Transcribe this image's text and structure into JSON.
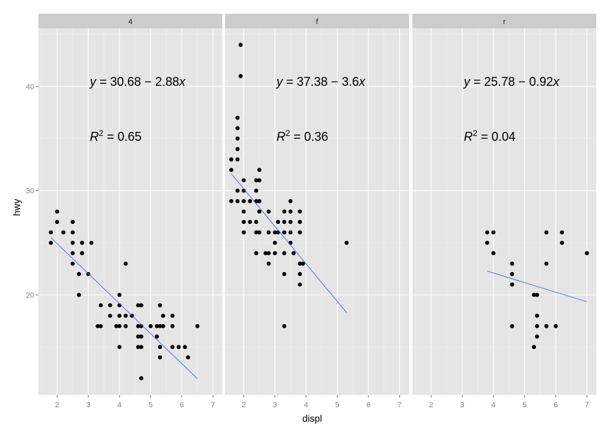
{
  "chart_data": {
    "type": "scatter",
    "facet_variable": "drv",
    "xlabel": "displ",
    "ylabel": "hwy",
    "xlim": [
      1.4,
      7.3
    ],
    "ylim": [
      10.4,
      45.6
    ],
    "x_ticks": [
      2,
      3,
      4,
      5,
      6,
      7
    ],
    "y_ticks": [
      20,
      30,
      40
    ],
    "grid": true,
    "colors": {
      "panel_bg": "#e5e5e5",
      "strip_bg": "#cccccc",
      "grid_major": "#ffffff",
      "grid_minor": "#f2f2f2",
      "point": "#000000",
      "fit_line": "#3366ff"
    },
    "panels": [
      {
        "label": "4",
        "equation": {
          "y": "y",
          "eq": " = ",
          "rhs": "30.68 − 2.88",
          "x": "x"
        },
        "r2": {
          "R": "R",
          "sup": "2",
          "eq": " = ",
          "value": "0.65"
        },
        "fit": {
          "intercept": 30.68,
          "slope": -2.88,
          "x_range": [
            1.8,
            6.5
          ]
        },
        "points": [
          [
            1.8,
            26
          ],
          [
            1.8,
            25
          ],
          [
            2.0,
            28
          ],
          [
            2.0,
            27
          ],
          [
            2.2,
            26
          ],
          [
            2.5,
            27
          ],
          [
            2.5,
            26
          ],
          [
            2.5,
            25
          ],
          [
            2.5,
            24
          ],
          [
            2.5,
            23
          ],
          [
            2.7,
            22
          ],
          [
            2.7,
            20
          ],
          [
            2.8,
            25
          ],
          [
            2.8,
            24
          ],
          [
            3.0,
            22
          ],
          [
            3.1,
            25
          ],
          [
            3.3,
            17
          ],
          [
            3.4,
            19
          ],
          [
            3.4,
            17
          ],
          [
            3.7,
            19
          ],
          [
            3.7,
            18
          ],
          [
            3.9,
            17
          ],
          [
            4.0,
            20
          ],
          [
            4.0,
            19
          ],
          [
            4.0,
            18
          ],
          [
            4.0,
            17
          ],
          [
            4.0,
            15
          ],
          [
            4.2,
            23
          ],
          [
            4.2,
            18
          ],
          [
            4.2,
            17
          ],
          [
            4.4,
            18
          ],
          [
            4.6,
            19
          ],
          [
            4.6,
            17
          ],
          [
            4.7,
            19
          ],
          [
            4.7,
            17
          ],
          [
            4.7,
            16
          ],
          [
            4.7,
            15
          ],
          [
            4.7,
            12
          ],
          [
            4.6,
            16
          ],
          [
            4.6,
            15
          ],
          [
            5.0,
            17
          ],
          [
            5.2,
            17
          ],
          [
            5.2,
            16
          ],
          [
            5.3,
            19
          ],
          [
            5.3,
            17
          ],
          [
            5.3,
            15
          ],
          [
            5.3,
            14
          ],
          [
            5.4,
            18
          ],
          [
            5.4,
            17
          ],
          [
            5.7,
            18
          ],
          [
            5.7,
            17
          ],
          [
            5.7,
            15
          ],
          [
            5.9,
            15
          ],
          [
            6.1,
            15
          ],
          [
            6.5,
            17
          ],
          [
            6.2,
            14
          ]
        ]
      },
      {
        "label": "f",
        "equation": {
          "y": "y",
          "eq": " = ",
          "rhs": "37.38 − 3.6",
          "x": "x"
        },
        "r2": {
          "R": "R",
          "sup": "2",
          "eq": " = ",
          "value": "0.36"
        },
        "fit": {
          "intercept": 37.38,
          "slope": -3.6,
          "x_range": [
            1.6,
            5.3
          ]
        },
        "points": [
          [
            1.6,
            33
          ],
          [
            1.6,
            32
          ],
          [
            1.6,
            29
          ],
          [
            1.8,
            37
          ],
          [
            1.8,
            36
          ],
          [
            1.8,
            35
          ],
          [
            1.8,
            34
          ],
          [
            1.8,
            33
          ],
          [
            1.8,
            30
          ],
          [
            1.8,
            29
          ],
          [
            1.9,
            44
          ],
          [
            1.9,
            41
          ],
          [
            2.0,
            31
          ],
          [
            2.0,
            30
          ],
          [
            2.0,
            29
          ],
          [
            2.0,
            28
          ],
          [
            2.0,
            27
          ],
          [
            2.0,
            26
          ],
          [
            2.2,
            29
          ],
          [
            2.2,
            27
          ],
          [
            2.4,
            31
          ],
          [
            2.4,
            30
          ],
          [
            2.4,
            29
          ],
          [
            2.4,
            27
          ],
          [
            2.4,
            26
          ],
          [
            2.4,
            24
          ],
          [
            2.5,
            32
          ],
          [
            2.5,
            31
          ],
          [
            2.5,
            29
          ],
          [
            2.5,
            28
          ],
          [
            2.5,
            26
          ],
          [
            2.7,
            24
          ],
          [
            2.8,
            28
          ],
          [
            2.8,
            26
          ],
          [
            2.8,
            24
          ],
          [
            2.8,
            23
          ],
          [
            3.0,
            26
          ],
          [
            3.0,
            25
          ],
          [
            3.0,
            24
          ],
          [
            3.1,
            27
          ],
          [
            3.1,
            26
          ],
          [
            3.3,
            28
          ],
          [
            3.3,
            27
          ],
          [
            3.3,
            26
          ],
          [
            3.3,
            24
          ],
          [
            3.3,
            22
          ],
          [
            3.3,
            17
          ],
          [
            3.5,
            29
          ],
          [
            3.5,
            28
          ],
          [
            3.5,
            27
          ],
          [
            3.5,
            26
          ],
          [
            3.5,
            25
          ],
          [
            3.6,
            24
          ],
          [
            3.8,
            28
          ],
          [
            3.8,
            27
          ],
          [
            3.8,
            26
          ],
          [
            3.8,
            23
          ],
          [
            3.8,
            22
          ],
          [
            3.8,
            21
          ],
          [
            3.9,
            23
          ],
          [
            5.3,
            25
          ]
        ]
      },
      {
        "label": "r",
        "equation": {
          "y": "y",
          "eq": " = ",
          "rhs": "25.78 − 0.92",
          "x": "x"
        },
        "r2": {
          "R": "R",
          "sup": "2",
          "eq": " = ",
          "value": "0.04"
        },
        "fit": {
          "intercept": 25.78,
          "slope": -0.92,
          "x_range": [
            3.8,
            7.0
          ]
        },
        "points": [
          [
            3.8,
            26
          ],
          [
            3.8,
            25
          ],
          [
            4.0,
            26
          ],
          [
            4.0,
            24
          ],
          [
            4.6,
            23
          ],
          [
            4.6,
            22
          ],
          [
            4.6,
            21
          ],
          [
            4.6,
            17
          ],
          [
            5.3,
            20
          ],
          [
            5.3,
            15
          ],
          [
            5.4,
            20
          ],
          [
            5.4,
            18
          ],
          [
            5.4,
            17
          ],
          [
            5.4,
            16
          ],
          [
            5.7,
            26
          ],
          [
            5.7,
            23
          ],
          [
            5.7,
            17
          ],
          [
            6.0,
            17
          ],
          [
            6.2,
            26
          ],
          [
            6.2,
            25
          ],
          [
            7.0,
            24
          ]
        ]
      }
    ]
  }
}
